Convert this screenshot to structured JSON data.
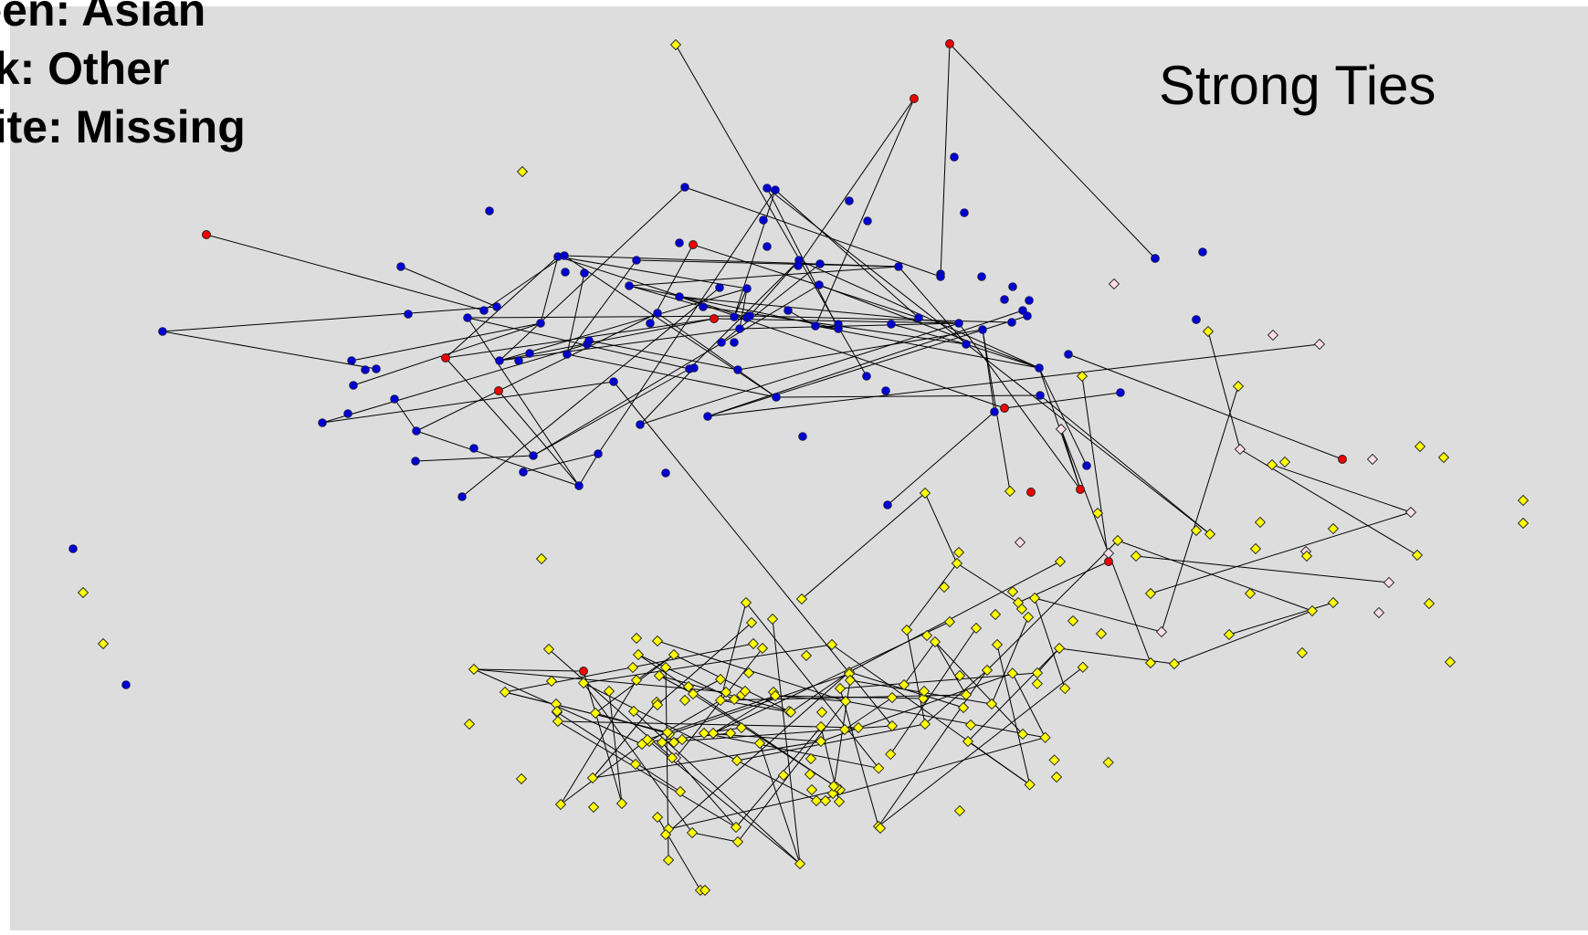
{
  "title": "Strong Ties",
  "legend": [
    {
      "label": "Green: Asian",
      "color": "#00aa00"
    },
    {
      "label": "Pink: Other",
      "color": "#ffccdd"
    },
    {
      "label": "White: Missing",
      "color": "#ffffff"
    }
  ],
  "node_colors": {
    "blue": "#0000cc",
    "yellow": "#ffff00",
    "red": "#ee0000",
    "pink": "#ffdde8"
  },
  "network": {
    "node_count": 231,
    "edge_count": 196
  }
}
